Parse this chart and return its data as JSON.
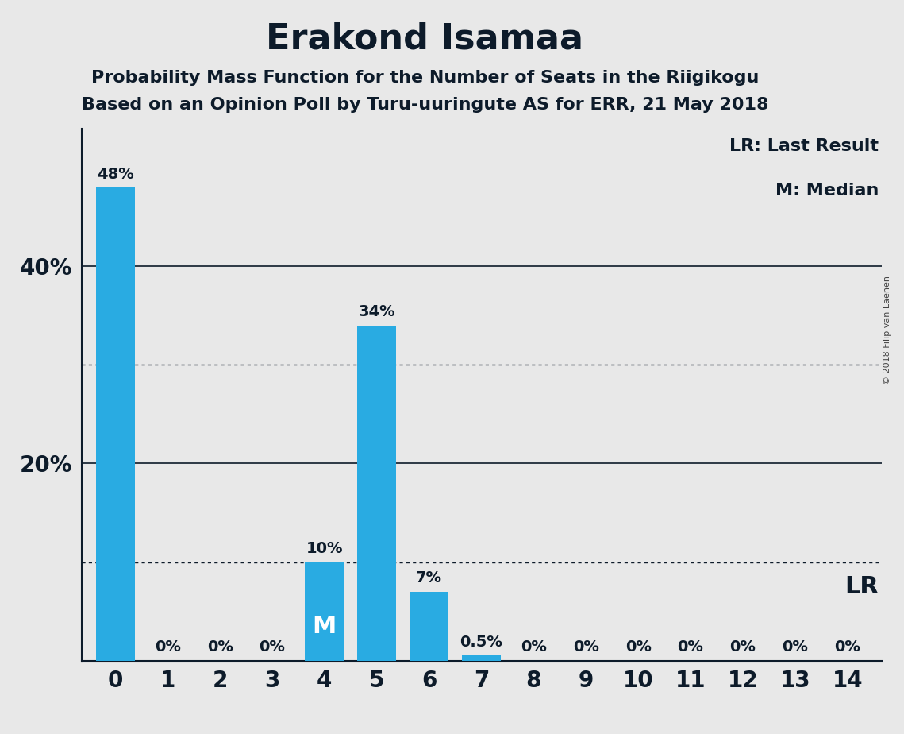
{
  "title": "Erakond Isamaa",
  "subtitle1": "Probability Mass Function for the Number of Seats in the Riigikogu",
  "subtitle2": "Based on an Opinion Poll by Turu-uuringute AS for ERR, 21 May 2018",
  "categories": [
    0,
    1,
    2,
    3,
    4,
    5,
    6,
    7,
    8,
    9,
    10,
    11,
    12,
    13,
    14
  ],
  "values": [
    48,
    0,
    0,
    0,
    10,
    34,
    7,
    0.5,
    0,
    0,
    0,
    0,
    0,
    0,
    0
  ],
  "bar_color": "#29ABE2",
  "bar_labels": [
    "48%",
    "0%",
    "0%",
    "0%",
    "10%",
    "34%",
    "7%",
    "0.5%",
    "0%",
    "0%",
    "0%",
    "0%",
    "0%",
    "0%",
    "0%"
  ],
  "median_bar": 4,
  "median_label": "M",
  "lr_label": "LR",
  "lr_legend": "LR: Last Result",
  "m_legend": "M: Median",
  "yticks": [
    20,
    40
  ],
  "ytick_labels": [
    "20%",
    "40%"
  ],
  "ylim": [
    0,
    54
  ],
  "dotted_lines": [
    10,
    30
  ],
  "solid_lines": [
    20,
    40
  ],
  "bg_color": "#E8E8E8",
  "bar_label_color": "#0D1B2A",
  "title_color": "#0D1B2A",
  "axis_color": "#0D1B2A",
  "copyright_text": "© 2018 Filip van Laenen"
}
